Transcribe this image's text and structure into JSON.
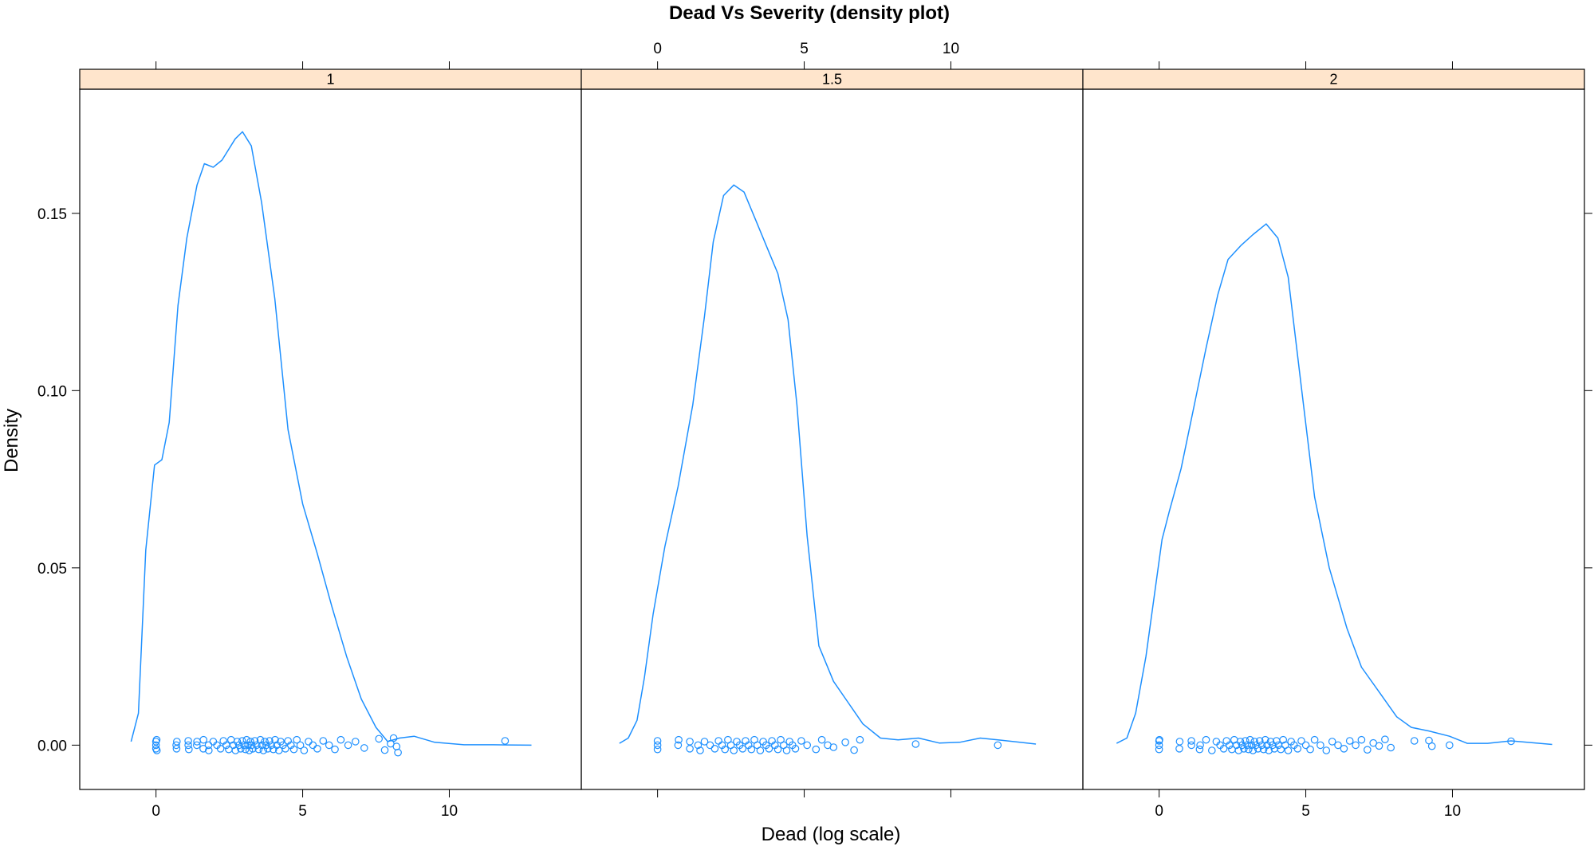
{
  "chart_data": {
    "type": "line",
    "title": "Dead Vs Severity (density plot)",
    "xlabel": "Dead (log scale)",
    "ylabel": "Density",
    "xlim": [
      -2.6,
      14.5
    ],
    "ylim": [
      -0.0125,
      0.185
    ],
    "x_ticks": [
      0,
      5,
      10
    ],
    "y_ticks": [
      0.0,
      0.05,
      0.1,
      0.15
    ],
    "y_tick_labels": [
      "0.00",
      "0.05",
      "0.10",
      "0.15"
    ],
    "grid": false,
    "line_color": "#1E90FF",
    "strip_color": "#FFE5CC",
    "panels": [
      {
        "label": "1",
        "x": [
          -0.85,
          -0.6,
          -0.35,
          -0.05,
          0.2,
          0.45,
          0.75,
          1.05,
          1.4,
          1.65,
          1.95,
          2.25,
          2.7,
          2.95,
          3.25,
          3.6,
          4.05,
          4.5,
          5.0,
          5.5,
          6.0,
          6.5,
          7.0,
          7.5,
          7.9,
          8.3,
          8.8,
          9.5,
          10.5,
          11.5,
          12.8
        ],
        "y": [
          0.001,
          0.009,
          0.055,
          0.079,
          0.0805,
          0.091,
          0.124,
          0.143,
          0.158,
          0.164,
          0.163,
          0.165,
          0.171,
          0.173,
          0.169,
          0.153,
          0.126,
          0.089,
          0.068,
          0.054,
          0.039,
          0.025,
          0.013,
          0.005,
          0.001,
          0.002,
          0.0025,
          0.0008,
          0.0001,
          0.0001,
          0.0
        ],
        "rug_x": [
          0,
          0,
          0,
          0.02,
          0.03,
          0.69,
          0.7,
          0.71,
          1.1,
          1.1,
          1.12,
          1.39,
          1.4,
          1.61,
          1.62,
          1.79,
          1.8,
          1.95,
          2.08,
          2.2,
          2.3,
          2.4,
          2.48,
          2.56,
          2.64,
          2.71,
          2.77,
          2.83,
          2.89,
          2.94,
          3.0,
          3.05,
          3.09,
          3.14,
          3.18,
          3.22,
          3.26,
          3.3,
          3.37,
          3.43,
          3.5,
          3.56,
          3.61,
          3.66,
          3.71,
          3.76,
          3.81,
          3.87,
          3.93,
          4.0,
          4.06,
          4.12,
          4.19,
          4.25,
          4.33,
          4.41,
          4.5,
          4.6,
          4.7,
          4.8,
          4.92,
          5.05,
          5.2,
          5.35,
          5.5,
          5.7,
          5.9,
          6.1,
          6.3,
          6.55,
          6.8,
          7.1,
          7.6,
          7.8,
          8.0,
          8.1,
          8.2,
          8.25,
          11.9
        ],
        "rug_y": [
          0.0,
          -0.001,
          0.001,
          0.0015,
          -0.0015,
          0.0,
          -0.001,
          0.001,
          0.0,
          0.0012,
          -0.0012,
          0.0,
          0.001,
          -0.001,
          0.0015,
          0.0,
          -0.0015,
          0.001,
          0.0,
          -0.001,
          0.0012,
          0.0,
          -0.0012,
          0.0015,
          0.0,
          -0.0015,
          0.001,
          0.0,
          -0.001,
          0.0012,
          0.0,
          -0.0012,
          0.0015,
          0.0,
          -0.0015,
          0.001,
          0.0,
          -0.001,
          0.0012,
          0.0,
          -0.0012,
          0.0015,
          0.0,
          -0.0015,
          0.001,
          0.0,
          -0.001,
          0.0012,
          0.0,
          -0.0012,
          0.0015,
          0.0,
          -0.0015,
          0.001,
          0.0,
          -0.001,
          0.0012,
          0.0,
          -0.0012,
          0.0015,
          0.0,
          -0.0015,
          0.001,
          0.0,
          -0.001,
          0.0012,
          0.0,
          -0.0012,
          0.0015,
          0.0,
          0.001,
          -0.0008,
          0.0018,
          -0.0014,
          0.0004,
          0.002,
          -0.0004,
          -0.0021,
          0.0012
        ]
      },
      {
        "label": "1.5",
        "x": [
          -1.3,
          -1.0,
          -0.7,
          -0.45,
          -0.15,
          0.25,
          0.7,
          1.2,
          1.6,
          1.9,
          2.25,
          2.6,
          2.95,
          3.35,
          3.75,
          4.1,
          4.45,
          4.75,
          5.1,
          5.5,
          6.0,
          6.5,
          7.0,
          7.6,
          8.2,
          8.9,
          9.6,
          10.3,
          11.0,
          11.7,
          12.9
        ],
        "y": [
          0.0005,
          0.002,
          0.007,
          0.019,
          0.037,
          0.056,
          0.073,
          0.096,
          0.121,
          0.142,
          0.155,
          0.158,
          0.156,
          0.148,
          0.14,
          0.133,
          0.12,
          0.096,
          0.059,
          0.028,
          0.018,
          0.012,
          0.006,
          0.002,
          0.0015,
          0.002,
          0.0006,
          0.0008,
          0.002,
          0.0014,
          0.0003
        ],
        "rug_x": [
          0,
          0,
          0,
          0.7,
          0.72,
          1.1,
          1.1,
          1.38,
          1.45,
          1.6,
          1.79,
          1.95,
          2.08,
          2.2,
          2.3,
          2.4,
          2.5,
          2.6,
          2.7,
          2.8,
          2.9,
          3.0,
          3.1,
          3.2,
          3.3,
          3.4,
          3.5,
          3.6,
          3.7,
          3.8,
          3.9,
          4.0,
          4.1,
          4.2,
          4.3,
          4.4,
          4.5,
          4.6,
          4.7,
          4.9,
          5.1,
          5.4,
          5.6,
          5.8,
          6.0,
          6.4,
          6.7,
          6.9,
          8.8,
          11.6
        ],
        "rug_y": [
          0.0,
          -0.0012,
          0.0012,
          0.0,
          0.0015,
          -0.001,
          0.001,
          0.0,
          -0.0015,
          0.001,
          0.0,
          -0.001,
          0.0012,
          0.0,
          -0.0012,
          0.0015,
          0.0,
          -0.0015,
          0.001,
          0.0,
          -0.001,
          0.0012,
          0.0,
          -0.0012,
          0.0015,
          0.0,
          -0.0015,
          0.001,
          0.0,
          -0.001,
          0.0012,
          0.0,
          -0.0012,
          0.0015,
          0.0,
          -0.0015,
          0.001,
          0.0,
          -0.001,
          0.0012,
          0.0,
          -0.0012,
          0.0015,
          0.0,
          -0.0006,
          0.0008,
          -0.0014,
          0.0015,
          0.0003,
          0.0
        ]
      },
      {
        "label": "2",
        "x": [
          -1.45,
          -1.1,
          -0.8,
          -0.45,
          -0.15,
          0.1,
          0.35,
          0.75,
          1.2,
          1.6,
          2.0,
          2.35,
          2.8,
          3.2,
          3.65,
          4.05,
          4.4,
          4.85,
          5.3,
          5.8,
          6.4,
          6.9,
          7.5,
          8.1,
          8.6,
          9.2,
          9.9,
          10.5,
          11.2,
          12.0,
          13.4
        ],
        "y": [
          0.0005,
          0.002,
          0.009,
          0.025,
          0.043,
          0.058,
          0.066,
          0.078,
          0.096,
          0.112,
          0.127,
          0.137,
          0.141,
          0.144,
          0.147,
          0.143,
          0.132,
          0.101,
          0.07,
          0.05,
          0.033,
          0.022,
          0.015,
          0.008,
          0.005,
          0.004,
          0.0025,
          0.0005,
          0.0005,
          0.0012,
          0.0002
        ],
        "rug_x": [
          0,
          0,
          0,
          0.01,
          0.69,
          0.7,
          1.1,
          1.1,
          1.38,
          1.4,
          1.6,
          1.8,
          1.95,
          2.08,
          2.2,
          2.3,
          2.4,
          2.48,
          2.56,
          2.64,
          2.71,
          2.77,
          2.83,
          2.89,
          2.94,
          3.0,
          3.05,
          3.1,
          3.15,
          3.2,
          3.25,
          3.3,
          3.37,
          3.43,
          3.5,
          3.56,
          3.62,
          3.68,
          3.74,
          3.8,
          3.87,
          3.93,
          4.0,
          4.07,
          4.15,
          4.23,
          4.3,
          4.4,
          4.5,
          4.6,
          4.72,
          4.85,
          5.0,
          5.15,
          5.3,
          5.5,
          5.7,
          5.9,
          6.1,
          6.3,
          6.5,
          6.7,
          6.9,
          7.1,
          7.3,
          7.5,
          7.7,
          7.9,
          8.7,
          9.2,
          9.3,
          9.9,
          12.0
        ],
        "rug_y": [
          0.0,
          -0.0012,
          0.0012,
          0.0015,
          -0.001,
          0.001,
          0.0,
          0.0012,
          -0.0012,
          0.0,
          0.0015,
          -0.0015,
          0.001,
          0.0,
          -0.001,
          0.0012,
          0.0,
          -0.0012,
          0.0015,
          0.0,
          -0.0015,
          0.001,
          0.0,
          -0.001,
          0.0012,
          0.0,
          -0.0012,
          0.0015,
          0.0,
          -0.0015,
          0.001,
          0.0,
          -0.001,
          0.0012,
          0.0,
          -0.0012,
          0.0015,
          0.0,
          -0.0015,
          0.001,
          0.0,
          -0.001,
          0.0012,
          0.0,
          -0.0012,
          0.0015,
          0.0,
          -0.0015,
          0.001,
          0.0,
          -0.001,
          0.0012,
          0.0,
          -0.0012,
          0.0015,
          0.0,
          -0.0015,
          0.001,
          0.0,
          -0.001,
          0.0012,
          0.0,
          0.0015,
          -0.0013,
          0.0006,
          -0.0002,
          0.0016,
          -0.0007,
          0.0012,
          0.0013,
          -0.0003,
          0.0,
          0.0011
        ]
      }
    ]
  }
}
